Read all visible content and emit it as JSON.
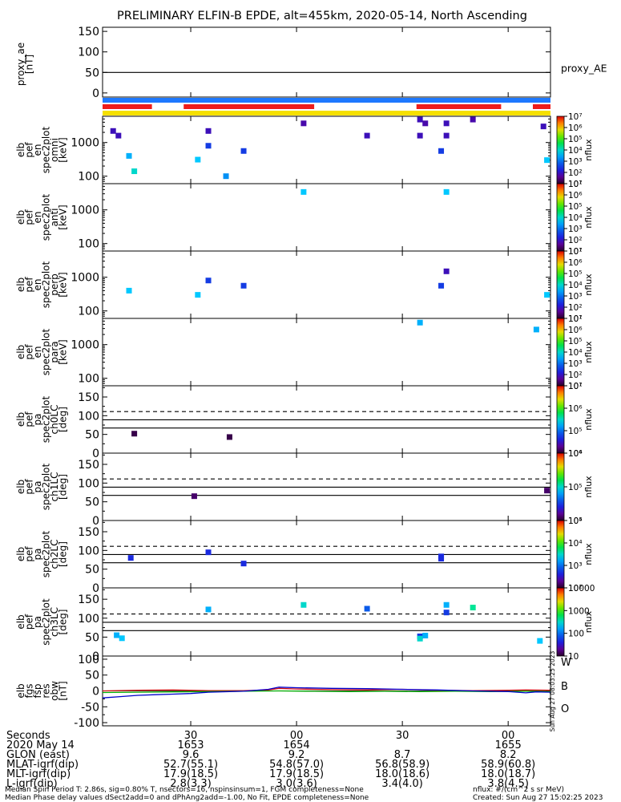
{
  "title": "PRELIMINARY ELFIN-B EPDE, alt=455km, 2020-05-14, North Ascending",
  "colors": {
    "blue_bar": "#1e78ff",
    "red_bar": "#ee1c1c",
    "yellow_bar": "#f5e000",
    "Wcolor": "#d01010",
    "Bcolor": "#00aa00",
    "Ocolor": "#0000cc"
  },
  "chart_data": {
    "type": "heatmap",
    "x_time": {
      "ticks": [
        {
          "t": 30,
          "sec": "30",
          "date": "1653",
          "glon": "9.6",
          "mlat": "52.7(55.1)",
          "mlt": "17.9(18.5)",
          "l": "2.8(3.3)"
        },
        {
          "t": 60,
          "sec": "00",
          "date": "1654",
          "glon": "9.2",
          "mlat": "54.8(57.0)",
          "mlt": "17.9(18.5)",
          "l": "3.0(3.6)"
        },
        {
          "t": 90,
          "sec": "30",
          "date": "",
          "glon": "8.7",
          "mlat": "56.8(58.9)",
          "mlt": "18.0(18.6)",
          "l": "3.4(4.0)"
        },
        {
          "t": 120,
          "sec": "00",
          "date": "1655",
          "glon": "8.2",
          "mlat": "58.9(60.8)",
          "mlt": "18.0(18.7)",
          "l": "3.8(4.5)"
        }
      ],
      "tmin": 5,
      "tmax": 132
    },
    "row_labels": {
      "seconds": "Seconds",
      "date": "2020 May 14",
      "glon": "GLON (east)",
      "mlat": "MLAT-igrf(dip)",
      "mlt": "MLT-igrf(dip)",
      "l": "L-igrf(dip)"
    },
    "footer_left": [
      "Median Spin Period T: 2.86s, sig=0.80% T, nsectors=16, nspinsinsum=1, FGM completeness=None",
      "Median Phase delay values dSect2add=0 and dPhAng2add=-1.00, No Fit, EPDE completeness=None"
    ],
    "footer_right": [
      "nflux: #/(cm^2 s sr MeV)",
      "Created: Sun Aug 27 15:02:25 2023"
    ],
    "side_stamp": "Sun Aug 27 08:03:25 2023",
    "proxy_ae": {
      "ylabel": [
        "proxy_ae",
        "[nT]"
      ],
      "yticks": [
        0,
        50,
        100,
        150
      ],
      "ylim": [
        -10,
        160
      ],
      "line_value": 50,
      "legend": "proxy_AE"
    },
    "bars": {
      "blue": [
        [
          5,
          132
        ]
      ],
      "red": [
        [
          5,
          19
        ],
        [
          28,
          65
        ],
        [
          94,
          118
        ],
        [
          127,
          132
        ]
      ],
      "yellow": [
        [
          5,
          132
        ]
      ]
    },
    "spec_panels": [
      {
        "ylabel": [
          "elb",
          "pef",
          "en",
          "spec2plot",
          "omni",
          "[keV]"
        ],
        "yticks": [
          100,
          1000
        ],
        "ylog": [
          60,
          6000
        ],
        "cbar_label": "nflux",
        "cbar_ticks": [
          "10¹",
          "10²",
          "10³",
          "10⁴",
          "10⁵",
          "10⁶",
          "10⁷"
        ],
        "points": [
          {
            "t": 8,
            "y": 2200,
            "lvl": 0.15
          },
          {
            "t": 9.5,
            "y": 1600,
            "lvl": 0.15
          },
          {
            "t": 12.5,
            "y": 400,
            "lvl": 0.42
          },
          {
            "t": 14,
            "y": 140,
            "lvl": 0.5
          },
          {
            "t": 32,
            "y": 310,
            "lvl": 0.45
          },
          {
            "t": 35,
            "y": 2200,
            "lvl": 0.15
          },
          {
            "t": 35,
            "y": 800,
            "lvl": 0.25
          },
          {
            "t": 40,
            "y": 100,
            "lvl": 0.38
          },
          {
            "t": 45,
            "y": 560,
            "lvl": 0.25
          },
          {
            "t": 62,
            "y": 3700,
            "lvl": 0.13
          },
          {
            "t": 80,
            "y": 1600,
            "lvl": 0.15
          },
          {
            "t": 95,
            "y": 4800,
            "lvl": 0.15
          },
          {
            "t": 95,
            "y": 1600,
            "lvl": 0.15
          },
          {
            "t": 96.5,
            "y": 3700,
            "lvl": 0.13
          },
          {
            "t": 101,
            "y": 560,
            "lvl": 0.25
          },
          {
            "t": 102.5,
            "y": 3700,
            "lvl": 0.15
          },
          {
            "t": 102.5,
            "y": 1600,
            "lvl": 0.15
          },
          {
            "t": 110,
            "y": 4800,
            "lvl": 0.13
          },
          {
            "t": 130,
            "y": 3000,
            "lvl": 0.15
          },
          {
            "t": 131,
            "y": 300,
            "lvl": 0.45
          }
        ]
      },
      {
        "ylabel": [
          "elb",
          "pef",
          "en",
          "spec2plot",
          "anti",
          "[keV]"
        ],
        "yticks": [
          100,
          1000
        ],
        "ylog": [
          60,
          6000
        ],
        "cbar_label": "nflux",
        "cbar_ticks": [
          "10¹",
          "10²",
          "10³",
          "10⁴",
          "10⁵",
          "10⁶",
          "10⁷"
        ],
        "points": [
          {
            "t": 62,
            "y": 3400,
            "lvl": 0.45
          },
          {
            "t": 102.5,
            "y": 3400,
            "lvl": 0.45
          }
        ]
      },
      {
        "ylabel": [
          "elb",
          "pef",
          "en",
          "spec2plot",
          "perp",
          "[keV]"
        ],
        "yticks": [
          100,
          1000
        ],
        "ylog": [
          60,
          6000
        ],
        "cbar_label": "nflux",
        "cbar_ticks": [
          "10¹",
          "10²",
          "10³",
          "10⁴",
          "10⁵",
          "10⁶",
          "10⁷"
        ],
        "points": [
          {
            "t": 12.5,
            "y": 400,
            "lvl": 0.45
          },
          {
            "t": 32,
            "y": 300,
            "lvl": 0.45
          },
          {
            "t": 35,
            "y": 800,
            "lvl": 0.25
          },
          {
            "t": 45,
            "y": 560,
            "lvl": 0.25
          },
          {
            "t": 101,
            "y": 560,
            "lvl": 0.25
          },
          {
            "t": 102.5,
            "y": 1500,
            "lvl": 0.15
          },
          {
            "t": 131,
            "y": 300,
            "lvl": 0.45
          }
        ]
      },
      {
        "ylabel": [
          "elb",
          "pef",
          "en",
          "spec2plot",
          "para",
          "[keV]"
        ],
        "yticks": [
          100,
          1000
        ],
        "ylog": [
          60,
          6000
        ],
        "cbar_label": "nflux",
        "cbar_ticks": [
          "10¹",
          "10²",
          "10³",
          "10⁴",
          "10⁵",
          "10⁶",
          "10⁷"
        ],
        "points": [
          {
            "t": 95,
            "y": 4500,
            "lvl": 0.42
          },
          {
            "t": 128,
            "y": 2800,
            "lvl": 0.42
          }
        ]
      }
    ],
    "pa_panels": [
      {
        "ylabel": [
          "elb",
          "pef",
          "pa",
          "spec2plot",
          "ch0LC",
          "[deg]"
        ],
        "ylim": [
          0,
          180
        ],
        "yticks": [
          0,
          50,
          100,
          150
        ],
        "cbar_label": "nflux",
        "cbar_ticks": [
          "10⁴",
          "10⁵",
          "10⁶",
          "10⁷"
        ],
        "dashed": 111,
        "solid": [
          89,
          67
        ],
        "points": [
          {
            "t": 14,
            "y": 52,
            "lvl": 0.03
          },
          {
            "t": 41,
            "y": 43,
            "lvl": 0.03
          }
        ]
      },
      {
        "ylabel": [
          "elb",
          "pef",
          "pa",
          "spec2plot",
          "ch1LC",
          "[deg]"
        ],
        "ylim": [
          0,
          180
        ],
        "yticks": [
          0,
          50,
          100,
          150
        ],
        "cbar_label": "nflux",
        "cbar_ticks": [
          "10⁴",
          "10⁵",
          "10⁶"
        ],
        "dashed": 111,
        "solid": [
          89,
          67
        ],
        "points": [
          {
            "t": 31,
            "y": 65,
            "lvl": 0.06
          },
          {
            "t": 131,
            "y": 80,
            "lvl": 0.06
          }
        ]
      },
      {
        "ylabel": [
          "elb",
          "pef",
          "pa",
          "spec2plot",
          "ch2LC",
          "[deg]"
        ],
        "ylim": [
          0,
          180
        ],
        "yticks": [
          0,
          50,
          100,
          150
        ],
        "cbar_label": "nflux",
        "cbar_ticks": [
          "10²",
          "10³",
          "10⁴",
          "10⁵"
        ],
        "dashed": 111,
        "solid": [
          89,
          67
        ],
        "points": [
          {
            "t": 13,
            "y": 80,
            "lvl": 0.22
          },
          {
            "t": 35,
            "y": 95,
            "lvl": 0.22
          },
          {
            "t": 45,
            "y": 65,
            "lvl": 0.22
          },
          {
            "t": 101,
            "y": 78,
            "lvl": 0.22
          },
          {
            "t": 101,
            "y": 84,
            "lvl": 0.22
          }
        ]
      },
      {
        "ylabel": [
          "elb",
          "pef",
          "pa",
          "spec2plot",
          "ch3LC",
          "[deg]"
        ],
        "ylim": [
          0,
          180
        ],
        "yticks": [
          0,
          50,
          100,
          150
        ],
        "cbar_label": "nflux",
        "cbar_ticks": [
          "10",
          "100",
          "1000",
          "10000"
        ],
        "dashed": 111,
        "solid": [
          89,
          67
        ],
        "points": [
          {
            "t": 9,
            "y": 55,
            "lvl": 0.42
          },
          {
            "t": 10.5,
            "y": 47,
            "lvl": 0.45
          },
          {
            "t": 35,
            "y": 123,
            "lvl": 0.42
          },
          {
            "t": 62,
            "y": 135,
            "lvl": 0.5
          },
          {
            "t": 80,
            "y": 125,
            "lvl": 0.3
          },
          {
            "t": 95,
            "y": 52,
            "lvl": 0.25
          },
          {
            "t": 95,
            "y": 46,
            "lvl": 0.5
          },
          {
            "t": 96.5,
            "y": 54,
            "lvl": 0.42
          },
          {
            "t": 102.5,
            "y": 135,
            "lvl": 0.42
          },
          {
            "t": 102.5,
            "y": 115,
            "lvl": 0.25
          },
          {
            "t": 110,
            "y": 128,
            "lvl": 0.55
          },
          {
            "t": 129,
            "y": 40,
            "lvl": 0.45
          }
        ]
      }
    ],
    "mag_panel": {
      "ylabel": [
        "elb",
        "fgs",
        "fsp",
        "res",
        "obw",
        "[nT]"
      ],
      "ylim": [
        -110,
        110
      ],
      "yticks": [
        -100,
        -50,
        0,
        50,
        100
      ],
      "legend": [
        "W",
        "B",
        "O"
      ],
      "series": [
        {
          "name": "W",
          "x": [
            5,
            15,
            25,
            35,
            45,
            52,
            55,
            60,
            70,
            80,
            90,
            100,
            110,
            120,
            125,
            132
          ],
          "y": [
            0,
            2,
            3,
            1,
            1,
            3,
            8,
            6,
            4,
            3,
            5,
            2,
            1,
            2,
            3,
            2
          ]
        },
        {
          "name": "B",
          "x": [
            5,
            15,
            25,
            35,
            45,
            55,
            65,
            75,
            85,
            95,
            105,
            115,
            125,
            132
          ],
          "y": [
            -5,
            -4,
            -3,
            -2,
            -1,
            0,
            -1,
            -2,
            -1,
            -2,
            -1,
            -2,
            -1,
            -2
          ]
        },
        {
          "name": "O",
          "x": [
            5,
            10,
            15,
            20,
            25,
            30,
            35,
            45,
            52,
            55,
            60,
            70,
            80,
            90,
            100,
            110,
            120,
            125,
            128,
            132
          ],
          "y": [
            -22,
            -18,
            -14,
            -12,
            -10,
            -8,
            -4,
            -1,
            5,
            12,
            10,
            8,
            7,
            5,
            3,
            0,
            -2,
            -6,
            -3,
            -4
          ]
        }
      ]
    }
  }
}
